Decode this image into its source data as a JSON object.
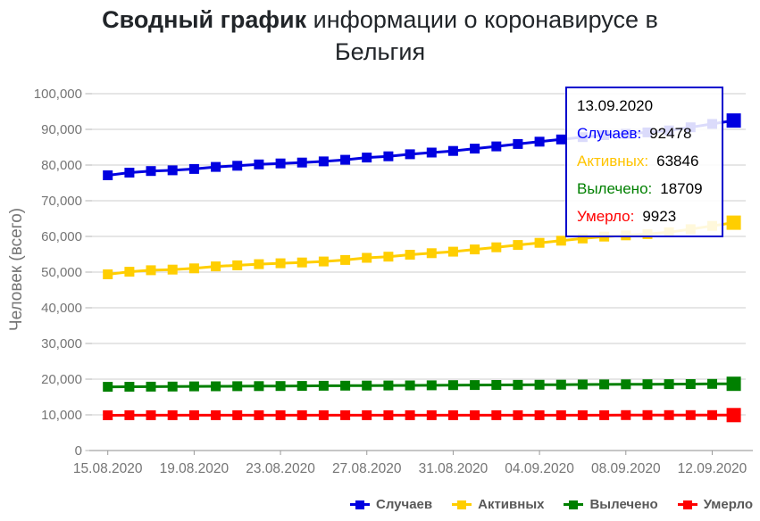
{
  "title": {
    "line1_bold": "Сводный график",
    "line1_rest": " информации о коронавирусе в",
    "line2": "Бельгия"
  },
  "chart_data": {
    "type": "line",
    "title": "Сводный график информации о коронавирусе в Бельгия",
    "xlabel": "",
    "ylabel": "Человек (всего)",
    "ylim": [
      0,
      100000
    ],
    "y_ticks": [
      0,
      10000,
      20000,
      30000,
      40000,
      50000,
      60000,
      70000,
      80000,
      90000,
      100000
    ],
    "grid": true,
    "legend_position": "bottom-right",
    "x_tick_labels": [
      "15.08.2020",
      "19.08.2020",
      "23.08.2020",
      "27.08.2020",
      "31.08.2020",
      "04.09.2020",
      "08.09.2020",
      "12.09.2020"
    ],
    "x_tick_indices": [
      0,
      4,
      8,
      12,
      16,
      20,
      24,
      28
    ],
    "x": [
      "15.08.2020",
      "16.08.2020",
      "17.08.2020",
      "18.08.2020",
      "19.08.2020",
      "20.08.2020",
      "21.08.2020",
      "22.08.2020",
      "23.08.2020",
      "24.08.2020",
      "25.08.2020",
      "26.08.2020",
      "27.08.2020",
      "28.08.2020",
      "29.08.2020",
      "30.08.2020",
      "31.08.2020",
      "01.09.2020",
      "02.09.2020",
      "03.09.2020",
      "04.09.2020",
      "05.09.2020",
      "06.09.2020",
      "07.09.2020",
      "08.09.2020",
      "09.09.2020",
      "10.09.2020",
      "11.09.2020",
      "12.09.2020",
      "13.09.2020"
    ],
    "highlight_index": 29,
    "series": [
      {
        "name": "Случаев",
        "color": "#0000e0",
        "values": [
          77113,
          77869,
          78323,
          78534,
          78897,
          79479,
          79812,
          80178,
          80462,
          80709,
          81020,
          81468,
          82092,
          82447,
          83030,
          83500,
          83952,
          84599,
          85236,
          85911,
          86544,
          87174,
          87825,
          88367,
          88769,
          89141,
          89691,
          90568,
          91537,
          92478
        ]
      },
      {
        "name": "Активных",
        "color": "#ffce00",
        "values": [
          49376,
          50102,
          50526,
          50706,
          51039,
          51591,
          51893,
          52229,
          52483,
          52700,
          52981,
          53399,
          53993,
          54318,
          54871,
          55311,
          55733,
          56350,
          56957,
          57602,
          58205,
          58805,
          59426,
          59938,
          60310,
          60652,
          61172,
          62018,
          62945,
          63846
        ]
      },
      {
        "name": "Вылечено",
        "color": "#008000",
        "values": [
          17850,
          17879,
          17908,
          17937,
          17966,
          17995,
          18024,
          18053,
          18082,
          18111,
          18140,
          18169,
          18198,
          18227,
          18256,
          18285,
          18314,
          18343,
          18372,
          18401,
          18430,
          18459,
          18488,
          18517,
          18546,
          18575,
          18604,
          18633,
          18673,
          18709
        ]
      },
      {
        "name": "Умерло",
        "color": "#fe0000",
        "values": [
          9887,
          9888,
          9889,
          9891,
          9892,
          9893,
          9895,
          9896,
          9897,
          9898,
          9899,
          9900,
          9901,
          9902,
          9903,
          9904,
          9905,
          9906,
          9907,
          9908,
          9909,
          9910,
          9911,
          9912,
          9913,
          9914,
          9915,
          9917,
          9919,
          9923
        ]
      }
    ]
  },
  "tooltip": {
    "date": "13.09.2020",
    "rows": [
      {
        "label": "Случаев:",
        "value": "92478",
        "color": "#0000ff"
      },
      {
        "label": "Активных:",
        "value": "63846",
        "color": "#ffc400"
      },
      {
        "label": "Вылечено:",
        "value": "18709",
        "color": "#008000"
      },
      {
        "label": "Умерло:",
        "value": "9923",
        "color": "#ff0000"
      }
    ]
  },
  "colors": {
    "axis_text": "#757575",
    "gridline": "#cccccc",
    "axis_line": "#b3b3b3",
    "tick": "#999999",
    "title_text": "#212529",
    "legend_text": "#595959"
  }
}
